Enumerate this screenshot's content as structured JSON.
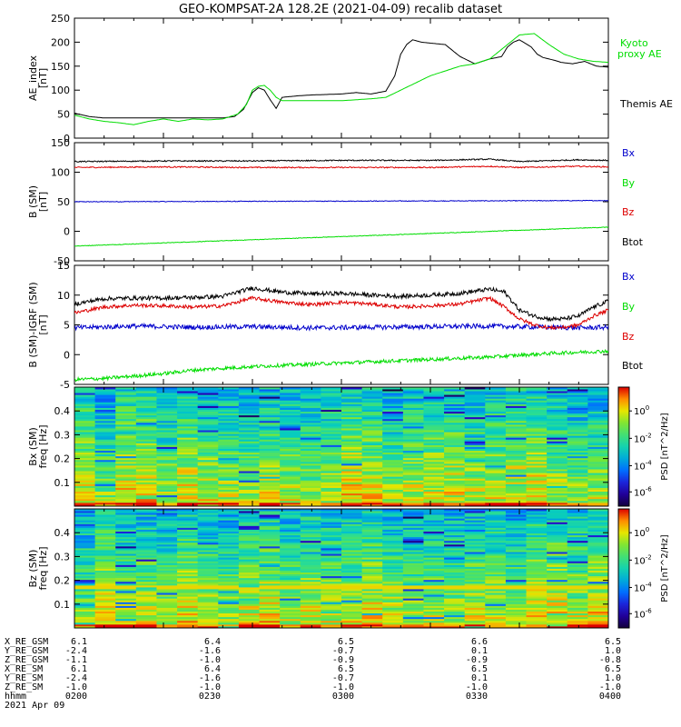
{
  "title": "GEO-KOMPSAT-2A 128.2E (2021-04-09) recalib dataset",
  "chart_data": [
    {
      "type": "line",
      "ylabel": [
        "AE_index",
        "[nT]"
      ],
      "ylim": [
        0,
        250
      ],
      "yticks": [
        0,
        50,
        100,
        150,
        200,
        250
      ],
      "xlim_minutes": [
        0,
        120
      ],
      "series": [
        {
          "name": "Themis AE",
          "color": "#000000",
          "x": [
            0,
            5,
            10,
            20,
            30,
            40,
            50,
            54,
            57,
            60,
            62,
            64,
            66,
            68,
            70,
            75,
            80,
            90,
            95,
            100,
            105,
            108,
            110,
            112,
            114,
            117,
            120,
            125,
            130,
            135,
            140,
            144,
            146,
            148,
            150,
            154,
            156,
            158,
            160,
            162,
            164,
            168,
            172,
            176,
            180
          ],
          "y": [
            52,
            45,
            42,
            42,
            42,
            42,
            42,
            45,
            60,
            95,
            105,
            100,
            80,
            62,
            85,
            88,
            90,
            92,
            95,
            92,
            98,
            130,
            175,
            195,
            205,
            200,
            198,
            195,
            170,
            155,
            165,
            170,
            190,
            200,
            205,
            190,
            175,
            168,
            165,
            162,
            158,
            155,
            160,
            150,
            148
          ]
        },
        {
          "name": "Kyoto proxy AE",
          "color": "#00dd00",
          "x": [
            0,
            5,
            10,
            15,
            20,
            25,
            30,
            35,
            40,
            45,
            50,
            55,
            58,
            60,
            62,
            64,
            66,
            68,
            70,
            80,
            90,
            100,
            105,
            110,
            115,
            120,
            125,
            130,
            135,
            140,
            145,
            150,
            155,
            160,
            165,
            170,
            175,
            180
          ],
          "y": [
            48,
            40,
            35,
            32,
            28,
            35,
            40,
            35,
            40,
            38,
            40,
            50,
            70,
            100,
            108,
            110,
            100,
            85,
            78,
            78,
            78,
            82,
            85,
            100,
            115,
            130,
            140,
            150,
            155,
            165,
            190,
            215,
            218,
            195,
            175,
            165,
            160,
            158
          ]
        }
      ]
    },
    {
      "type": "line",
      "ylabel": [
        "B (SM)",
        "[nT]"
      ],
      "ylim": [
        -50,
        150
      ],
      "yticks": [
        -50,
        0,
        50,
        100,
        150
      ],
      "series": [
        {
          "name": "Bx",
          "color": "#0000cc",
          "x": [
            0,
            180
          ],
          "y": [
            50,
            52
          ]
        },
        {
          "name": "By",
          "color": "#00dd00",
          "x": [
            0,
            180
          ],
          "y": [
            -25,
            7
          ]
        },
        {
          "name": "Bz",
          "color": "#dd0000",
          "x": [
            0,
            30,
            60,
            90,
            120,
            140,
            150,
            170,
            180
          ],
          "y": [
            108,
            109,
            108,
            108,
            108,
            110,
            108,
            110,
            109
          ]
        },
        {
          "name": "Btot",
          "color": "#000000",
          "x": [
            0,
            30,
            60,
            90,
            120,
            140,
            150,
            170,
            180
          ],
          "y": [
            118,
            119,
            119,
            120,
            120,
            122,
            118,
            121,
            120
          ]
        }
      ],
      "legend": [
        "Bx",
        "By",
        "Bz",
        "Btot"
      ]
    },
    {
      "type": "line",
      "ylabel": [
        "B (SM)-IGRF (SM)",
        "[nT]"
      ],
      "ylim": [
        -5,
        15
      ],
      "yticks": [
        -5,
        0,
        5,
        10,
        15
      ],
      "series": [
        {
          "name": "Bx",
          "color": "#0000cc",
          "x": [
            0,
            20,
            40,
            60,
            80,
            100,
            120,
            140,
            150,
            160,
            170,
            180
          ],
          "y": [
            4.5,
            4.8,
            4.6,
            4.7,
            4.5,
            4.6,
            4.7,
            4.8,
            4.7,
            4.6,
            4.5,
            4.6
          ]
        },
        {
          "name": "By",
          "color": "#00dd00",
          "x": [
            0,
            10,
            20,
            30,
            40,
            60,
            80,
            100,
            120,
            140,
            160,
            180
          ],
          "y": [
            -4.2,
            -4.0,
            -3.6,
            -3.2,
            -2.6,
            -2.0,
            -1.6,
            -1.2,
            -0.8,
            -0.4,
            0.2,
            0.6
          ]
        },
        {
          "name": "Bz",
          "color": "#dd0000",
          "x": [
            0,
            10,
            20,
            30,
            40,
            50,
            60,
            70,
            80,
            90,
            100,
            110,
            120,
            130,
            140,
            145,
            150,
            155,
            160,
            165,
            170,
            175,
            180
          ],
          "y": [
            7.0,
            8.0,
            8.3,
            8.2,
            8.0,
            8.2,
            9.5,
            8.8,
            8.4,
            8.8,
            8.5,
            8.0,
            8.2,
            8.5,
            9.5,
            8.0,
            6.0,
            5.0,
            4.5,
            4.6,
            5.0,
            6.5,
            7.5
          ]
        },
        {
          "name": "Btot",
          "color": "#000000",
          "x": [
            0,
            10,
            20,
            30,
            40,
            50,
            60,
            70,
            80,
            90,
            100,
            110,
            120,
            130,
            140,
            145,
            150,
            155,
            160,
            165,
            170,
            175,
            180
          ],
          "y": [
            8.5,
            9.4,
            9.5,
            9.5,
            9.6,
            9.8,
            11.2,
            10.5,
            10.2,
            10.3,
            10.0,
            9.8,
            10.0,
            10.3,
            11.0,
            10.5,
            7.5,
            6.5,
            6.0,
            6.0,
            6.5,
            8.0,
            9.0
          ]
        }
      ],
      "legend": [
        "Bx",
        "By",
        "Bz",
        "Btot"
      ]
    },
    {
      "type": "heatmap",
      "ylabel": [
        "Bx (SM)",
        "freq [Hz]"
      ],
      "ylim": [
        0,
        0.5
      ],
      "yticks": [
        0.1,
        0.2,
        0.3,
        0.4
      ],
      "colorbar": {
        "label": "PSD [nT^2/Hz]",
        "ticks": [
          "10^0",
          "10^-2",
          "10^-4",
          "10^-6"
        ]
      }
    },
    {
      "type": "heatmap",
      "ylabel": [
        "Bz (SM)",
        "freq [Hz]"
      ],
      "ylim": [
        0,
        0.5
      ],
      "yticks": [
        0.1,
        0.2,
        0.3,
        0.4
      ],
      "colorbar": {
        "label": "PSD [nT^2/Hz]",
        "ticks": [
          "10^0",
          "10^-2",
          "10^-4",
          "10^-6"
        ]
      }
    }
  ],
  "ephemeris": {
    "rows": [
      {
        "label": "X_RE_GSM",
        "values": [
          "6.1",
          "6.4",
          "6.5",
          "6.6",
          "6.5"
        ]
      },
      {
        "label": "Y_RE_GSM",
        "values": [
          "-2.4",
          "-1.6",
          "-0.7",
          "0.1",
          "1.0"
        ]
      },
      {
        "label": "Z_RE_GSM",
        "values": [
          "-1.1",
          "-1.0",
          "-0.9",
          "-0.9",
          "-0.8"
        ]
      },
      {
        "label": "X_RE_SM",
        "values": [
          "6.1",
          "6.4",
          "6.5",
          "6.5",
          "6.5"
        ]
      },
      {
        "label": "Y_RE_SM",
        "values": [
          "-2.4",
          "-1.6",
          "-0.7",
          "0.1",
          "1.0"
        ]
      },
      {
        "label": "Z_RE_SM",
        "values": [
          "-1.0",
          "-1.0",
          "-1.0",
          "-1.0",
          "-1.0"
        ]
      },
      {
        "label": "hhmm",
        "values": [
          "0200",
          "0230",
          "0300",
          "0330",
          "0400"
        ]
      }
    ],
    "date": "2021 Apr 09"
  }
}
